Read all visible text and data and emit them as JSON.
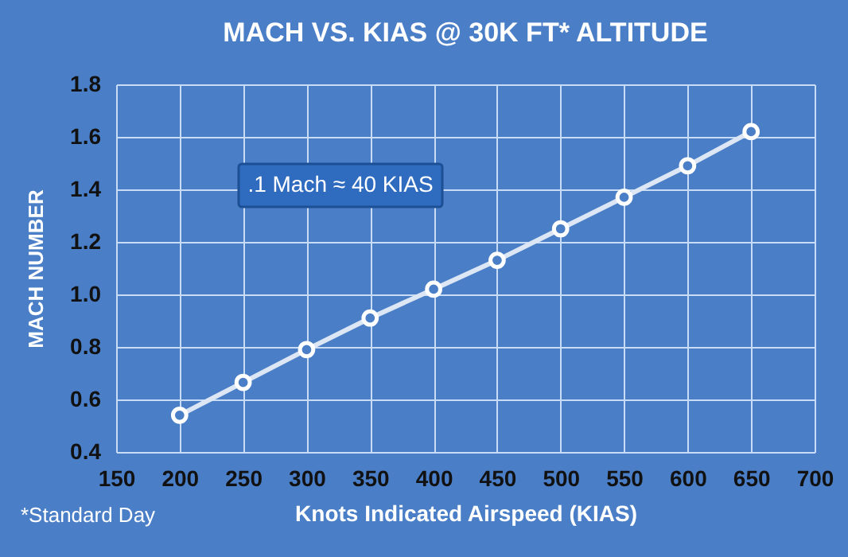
{
  "chart_data": {
    "type": "line",
    "title": "MACH VS. KIAS @ 30K FT* ALTITUDE",
    "xlabel": "Knots Indicated Airspeed (KIAS)",
    "ylabel": "MACH NUMBER",
    "annotations": [
      ".1 Mach ≈ 40 KIAS",
      "*Standard Day"
    ],
    "x": [
      200,
      250,
      300,
      350,
      400,
      450,
      500,
      550,
      600,
      650
    ],
    "series": [
      {
        "color": "#dce6f4",
        "values": [
          0.54,
          0.665,
          0.79,
          0.91,
          1.02,
          1.13,
          1.25,
          1.37,
          1.49,
          1.62
        ]
      }
    ],
    "xlim": [
      150,
      700
    ],
    "ylim": [
      0.4,
      1.8
    ],
    "xticks": [
      150,
      200,
      250,
      300,
      350,
      400,
      450,
      500,
      550,
      600,
      650,
      700
    ],
    "yticks": [
      0.4,
      0.6,
      0.8,
      {
        "value": 1,
        "label": "1.0"
      },
      1.2,
      1.4,
      1.6,
      1.8
    ],
    "grid": true,
    "marker": "circle"
  }
}
